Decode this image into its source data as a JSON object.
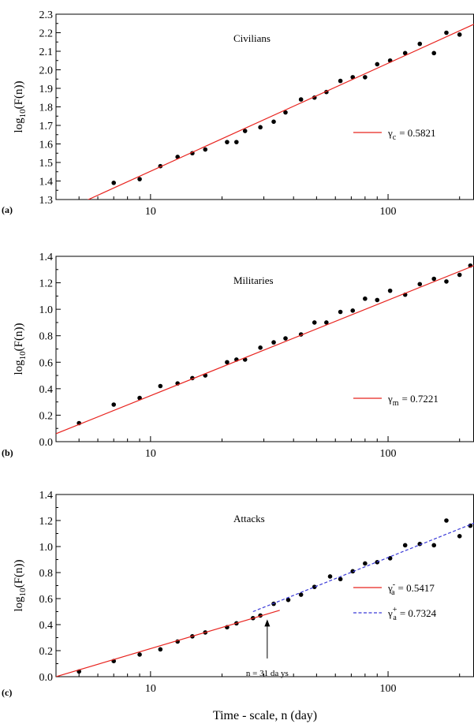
{
  "chart_data": [
    {
      "type": "scatter",
      "panel": "(a)",
      "title": "Civilians",
      "ylabel_base": "log",
      "ylabel_sub": "10",
      "ylabel_rest": "(F(n))",
      "xlim": [
        4,
        230
      ],
      "ylim": [
        1.3,
        2.3
      ],
      "x_scale": "log",
      "x_ticks": [
        10,
        100
      ],
      "y_ticks": [
        1.3,
        1.4,
        1.5,
        1.6,
        1.7,
        1.8,
        1.9,
        2.0,
        2.1,
        2.2,
        2.3
      ],
      "series": [
        {
          "kind": "points",
          "x": [
            7,
            9,
            11,
            13,
            15,
            17,
            21,
            23,
            25,
            29,
            33,
            37,
            43,
            49,
            55,
            63,
            71,
            80,
            90,
            102,
            118,
            136,
            156,
            176,
            200
          ],
          "y": [
            1.39,
            1.41,
            1.48,
            1.53,
            1.55,
            1.57,
            1.61,
            1.61,
            1.67,
            1.69,
            1.72,
            1.77,
            1.84,
            1.85,
            1.88,
            1.94,
            1.96,
            1.96,
            2.03,
            2.05,
            2.09,
            2.14,
            2.09,
            2.2,
            2.19
          ]
        },
        {
          "kind": "fit",
          "style": "solid",
          "color": "#e8241f",
          "x": [
            5,
            230
          ],
          "y": [
            1.277,
            2.246
          ],
          "legend_symbol": "γ",
          "legend_sub": "c",
          "legend_sup": "",
          "legend_value": "= 0.5821"
        }
      ]
    },
    {
      "type": "scatter",
      "panel": "(b)",
      "title": "Militaries",
      "ylabel_base": "log",
      "ylabel_sub": "10",
      "ylabel_rest": "(F(n))",
      "xlim": [
        4,
        230
      ],
      "ylim": [
        0.0,
        1.4
      ],
      "x_scale": "log",
      "x_ticks": [
        10,
        100
      ],
      "y_ticks": [
        0.0,
        0.2,
        0.4,
        0.6,
        0.8,
        1.0,
        1.2,
        1.4
      ],
      "series": [
        {
          "kind": "points",
          "x": [
            5,
            7,
            9,
            11,
            13,
            15,
            17,
            21,
            23,
            25,
            29,
            33,
            37,
            43,
            49,
            55,
            63,
            71,
            80,
            90,
            102,
            118,
            136,
            156,
            176,
            200,
            222
          ],
          "y": [
            0.14,
            0.28,
            0.33,
            0.42,
            0.44,
            0.48,
            0.5,
            0.6,
            0.62,
            0.62,
            0.71,
            0.75,
            0.78,
            0.81,
            0.9,
            0.9,
            0.98,
            0.99,
            1.08,
            1.07,
            1.14,
            1.11,
            1.19,
            1.23,
            1.21,
            1.26,
            1.33
          ]
        },
        {
          "kind": "fit",
          "style": "solid",
          "color": "#e8241f",
          "x": [
            4,
            230
          ],
          "y": [
            0.06,
            1.33
          ],
          "legend_symbol": "γ",
          "legend_sub": "m",
          "legend_sup": "",
          "legend_value": "= 0.7221"
        }
      ]
    },
    {
      "type": "scatter",
      "panel": "(c)",
      "title": "Attacks",
      "ylabel_base": "log",
      "ylabel_sub": "10",
      "ylabel_rest": "(F(n))",
      "xlabel": "Time - scale, n (day)",
      "xlim": [
        4,
        230
      ],
      "ylim": [
        0.0,
        1.4
      ],
      "x_scale": "log",
      "x_ticks": [
        10,
        100
      ],
      "y_ticks": [
        0.0,
        0.2,
        0.4,
        0.6,
        0.8,
        1.0,
        1.2,
        1.4
      ],
      "annotation": {
        "text": "n = 31 da ys",
        "x": 31,
        "y_from": 0.14,
        "y_to": 0.44
      },
      "series": [
        {
          "kind": "points",
          "x": [
            5,
            7,
            9,
            11,
            13,
            15,
            17,
            21,
            23,
            27,
            29,
            33,
            38,
            43,
            49,
            57,
            63,
            71,
            80,
            90,
            102,
            118,
            136,
            156,
            176,
            200,
            222
          ],
          "y": [
            0.04,
            0.12,
            0.17,
            0.21,
            0.27,
            0.31,
            0.34,
            0.38,
            0.41,
            0.45,
            0.47,
            0.56,
            0.59,
            0.63,
            0.69,
            0.77,
            0.75,
            0.81,
            0.87,
            0.88,
            0.91,
            1.01,
            1.02,
            1.01,
            1.2,
            1.08,
            1.16
          ]
        },
        {
          "kind": "fit",
          "style": "solid",
          "color": "#e8241f",
          "x": [
            4,
            35
          ],
          "y": [
            0.0,
            0.51
          ],
          "legend_symbol": "γ",
          "legend_sub": "a",
          "legend_sup": "-",
          "legend_value": "= 0.5417"
        },
        {
          "kind": "fit",
          "style": "dashed",
          "color": "#3b3bd8",
          "x": [
            27,
            230
          ],
          "y": [
            0.5,
            1.18
          ],
          "legend_symbol": "γ",
          "legend_sub": "a",
          "legend_sup": "+",
          "legend_value": "= 0.7324"
        }
      ]
    }
  ]
}
